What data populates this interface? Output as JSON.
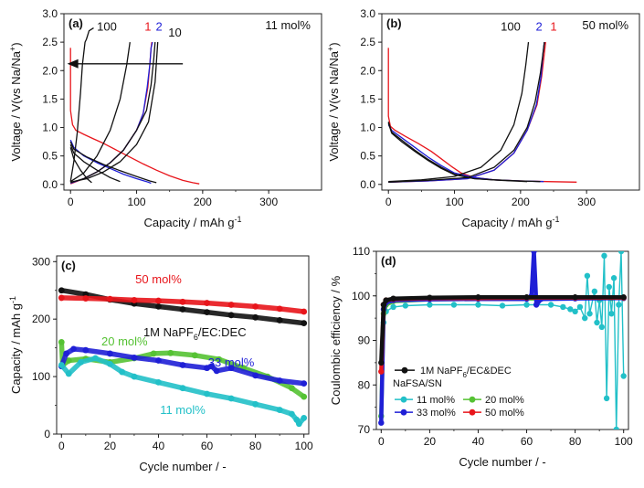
{
  "colors": {
    "black": "#111111",
    "red": "#e8151b",
    "blue": "#1f1fd6",
    "green": "#55c233",
    "cyan": "#22c0c8",
    "gray": "#888888"
  },
  "chart_data": [
    {
      "id": "a",
      "type": "line",
      "panel_label": "(a)",
      "annotation": "11 mol%",
      "xlabel": "Capacity / mAh g",
      "xlabel_sup": "-1",
      "ylabel": "Voltage / V(vs Na/Na",
      "ylabel_sup": "+",
      "ylabel_end": ")",
      "xlim": [
        -10,
        380
      ],
      "ylim": [
        -0.1,
        3.0
      ],
      "xticks": [
        0,
        100,
        200,
        300
      ],
      "yticks": [
        0.0,
        0.5,
        1.0,
        1.5,
        2.0,
        2.5,
        3.0
      ],
      "cycle_labels": [
        {
          "text": "100",
          "color": "black",
          "x": 55,
          "y": 2.7
        },
        {
          "text": "1",
          "color": "red",
          "x": 117,
          "y": 2.7
        },
        {
          "text": "2",
          "color": "blue",
          "x": 134,
          "y": 2.7
        },
        {
          "text": "10",
          "color": "black",
          "x": 158,
          "y": 2.6
        }
      ],
      "arrow": {
        "from": [
          170,
          2.12
        ],
        "to": [
          -5,
          2.12
        ]
      },
      "series": [
        {
          "name": "1",
          "color": "red",
          "x": [
            0,
            0,
            3,
            8,
            20,
            35,
            50,
            70,
            90,
            110,
            130,
            150,
            170,
            185,
            195
          ],
          "y": [
            2.4,
            1.3,
            1.05,
            0.95,
            0.88,
            0.8,
            0.72,
            0.6,
            0.48,
            0.36,
            0.25,
            0.15,
            0.07,
            0.03,
            0.01
          ]
        },
        {
          "name": "1",
          "color": "red",
          "x": [
            0,
            20,
            40,
            60,
            80,
            100,
            110,
            117,
            120,
            122,
            123
          ],
          "y": [
            0.01,
            0.1,
            0.22,
            0.38,
            0.6,
            0.95,
            1.25,
            1.7,
            2.1,
            2.4,
            2.5
          ]
        },
        {
          "name": "2",
          "color": "blue",
          "x": [
            0,
            20,
            40,
            60,
            80,
            100,
            110,
            116,
            120,
            122,
            124
          ],
          "y": [
            0.02,
            0.1,
            0.22,
            0.38,
            0.6,
            0.95,
            1.25,
            1.7,
            2.1,
            2.4,
            2.5
          ]
        },
        {
          "name": "2",
          "color": "blue",
          "x": [
            0,
            5,
            20,
            40,
            60,
            80,
            100,
            115,
            122
          ],
          "y": [
            0.78,
            0.65,
            0.5,
            0.38,
            0.28,
            0.18,
            0.1,
            0.05,
            0.02
          ]
        },
        {
          "name": "10",
          "color": "black",
          "x": [
            0,
            5,
            25,
            50,
            75,
            100,
            120,
            130
          ],
          "y": [
            0.75,
            0.62,
            0.48,
            0.35,
            0.24,
            0.14,
            0.06,
            0.03
          ]
        },
        {
          "name": "10",
          "color": "black",
          "x": [
            0,
            20,
            40,
            60,
            80,
            100,
            115,
            122,
            126,
            128
          ],
          "y": [
            0.03,
            0.1,
            0.22,
            0.38,
            0.6,
            0.95,
            1.3,
            1.75,
            2.2,
            2.5
          ]
        },
        {
          "name": "10",
          "color": "black",
          "x": [
            0,
            25,
            50,
            75,
            100,
            118,
            128,
            132
          ],
          "y": [
            0.04,
            0.1,
            0.22,
            0.4,
            0.7,
            1.1,
            1.8,
            2.5
          ]
        },
        {
          "name": "50",
          "color": "black",
          "x": [
            0,
            5,
            20,
            40,
            60,
            75
          ],
          "y": [
            0.7,
            0.55,
            0.4,
            0.25,
            0.12,
            0.05
          ]
        },
        {
          "name": "50",
          "color": "black",
          "x": [
            0,
            20,
            40,
            60,
            75,
            85,
            90
          ],
          "y": [
            0.05,
            0.2,
            0.5,
            0.95,
            1.5,
            2.1,
            2.5
          ]
        },
        {
          "name": "100",
          "color": "black",
          "x": [
            0,
            5,
            15,
            25,
            32
          ],
          "y": [
            0.65,
            0.45,
            0.25,
            0.1,
            0.03
          ]
        },
        {
          "name": "100",
          "color": "black",
          "x": [
            0,
            5,
            10,
            15,
            18,
            22,
            24,
            28,
            35
          ],
          "y": [
            0.05,
            0.4,
            0.9,
            1.6,
            2.1,
            2.5,
            2.55,
            2.7,
            2.75
          ]
        }
      ]
    },
    {
      "id": "b",
      "type": "line",
      "panel_label": "(b)",
      "annotation": "50 mol%",
      "xlabel": "Capacity / mAh g",
      "xlabel_sup": "-1",
      "ylabel": "Voltage / V(vs Na/Na",
      "ylabel_sup": "+",
      "ylabel_end": ")",
      "xlim": [
        -10,
        380
      ],
      "ylim": [
        -0.1,
        3.0
      ],
      "xticks": [
        0,
        100,
        200,
        300
      ],
      "yticks": [
        0.0,
        0.5,
        1.0,
        1.5,
        2.0,
        2.5,
        3.0
      ],
      "cycle_labels": [
        {
          "text": "100",
          "color": "black",
          "x": 185,
          "y": 2.7
        },
        {
          "text": "2",
          "color": "blue",
          "x": 228,
          "y": 2.7
        },
        {
          "text": "1",
          "color": "red",
          "x": 250,
          "y": 2.7
        }
      ],
      "series": [
        {
          "name": "1",
          "color": "red",
          "x": [
            0,
            0,
            3,
            10,
            25,
            45,
            65,
            80,
            95,
            110,
            130,
            160,
            200,
            240,
            285
          ],
          "y": [
            2.4,
            1.2,
            1.02,
            0.95,
            0.85,
            0.72,
            0.58,
            0.45,
            0.32,
            0.2,
            0.12,
            0.08,
            0.06,
            0.05,
            0.04
          ]
        },
        {
          "name": "1",
          "color": "red",
          "x": [
            0,
            60,
            120,
            160,
            190,
            210,
            225,
            232,
            236,
            238
          ],
          "y": [
            0.04,
            0.06,
            0.1,
            0.25,
            0.55,
            0.95,
            1.4,
            1.9,
            2.3,
            2.5
          ]
        },
        {
          "name": "2",
          "color": "blue",
          "x": [
            0,
            60,
            120,
            160,
            190,
            210,
            224,
            231,
            234,
            236
          ],
          "y": [
            0.04,
            0.06,
            0.1,
            0.25,
            0.55,
            0.95,
            1.4,
            1.9,
            2.3,
            2.5
          ]
        },
        {
          "name": "2",
          "color": "blue",
          "x": [
            0,
            5,
            20,
            40,
            60,
            80,
            100,
            130,
            160,
            200,
            235
          ],
          "y": [
            1.05,
            0.95,
            0.82,
            0.65,
            0.48,
            0.33,
            0.2,
            0.12,
            0.08,
            0.06,
            0.05
          ]
        },
        {
          "name": "10",
          "color": "black",
          "x": [
            0,
            5,
            20,
            40,
            60,
            80,
            100,
            130,
            160,
            200,
            230
          ],
          "y": [
            1.1,
            0.92,
            0.78,
            0.6,
            0.44,
            0.3,
            0.18,
            0.1,
            0.08,
            0.06,
            0.05
          ]
        },
        {
          "name": "10",
          "color": "black",
          "x": [
            0,
            60,
            120,
            160,
            190,
            210,
            222,
            230,
            234,
            236
          ],
          "y": [
            0.04,
            0.07,
            0.12,
            0.3,
            0.6,
            1.0,
            1.45,
            1.95,
            2.3,
            2.5
          ]
        },
        {
          "name": "100",
          "color": "black",
          "x": [
            0,
            5,
            20,
            40,
            60,
            80,
            100,
            130,
            170,
            210
          ],
          "y": [
            1.08,
            0.9,
            0.75,
            0.58,
            0.42,
            0.28,
            0.17,
            0.1,
            0.07,
            0.05
          ]
        },
        {
          "name": "100",
          "color": "black",
          "x": [
            0,
            50,
            100,
            140,
            170,
            190,
            202,
            208,
            212
          ],
          "y": [
            0.05,
            0.08,
            0.14,
            0.3,
            0.6,
            1.05,
            1.6,
            2.1,
            2.5
          ]
        }
      ]
    },
    {
      "id": "c",
      "type": "scatter",
      "panel_label": "(c)",
      "xlabel": "Cycle number / -",
      "ylabel": "Capacity / mAh g",
      "ylabel_sup": "-1",
      "xlim": [
        -2,
        102
      ],
      "ylim": [
        0,
        310
      ],
      "xticks": [
        0,
        20,
        40,
        60,
        80,
        100
      ],
      "yticks": [
        0,
        100,
        200,
        300
      ],
      "labels": [
        {
          "text": "50 mol%",
          "color": "red",
          "x": 40,
          "y": 262
        },
        {
          "text": "1M NaPF",
          "sub": "6",
          "rest": "/EC:DEC",
          "color": "black",
          "x": 55,
          "y": 170
        },
        {
          "text": "20 mol%",
          "color": "green",
          "x": 26,
          "y": 154
        },
        {
          "text": "33 mol%",
          "color": "blue",
          "x": 70,
          "y": 118
        },
        {
          "text": "11 mol%",
          "color": "cyan",
          "x": 50,
          "y": 35
        }
      ],
      "series": [
        {
          "name": "1M NaPF6/EC:DEC",
          "color": "black",
          "x": [
            0,
            10,
            20,
            30,
            40,
            50,
            60,
            70,
            80,
            90,
            100
          ],
          "y": [
            250,
            243,
            234,
            227,
            222,
            217,
            212,
            207,
            203,
            198,
            193
          ]
        },
        {
          "name": "50 mol%",
          "color": "red",
          "x": [
            0,
            10,
            20,
            30,
            40,
            50,
            60,
            70,
            80,
            90,
            100
          ],
          "y": [
            237,
            236,
            235,
            233,
            232,
            230,
            228,
            225,
            222,
            218,
            213
          ]
        },
        {
          "name": "20 mol%",
          "color": "green",
          "x": [
            0,
            0.5,
            3,
            10,
            20,
            30,
            38,
            45,
            55,
            65,
            75,
            85,
            95,
            100
          ],
          "y": [
            160,
            120,
            128,
            131,
            125,
            132,
            140,
            141,
            137,
            130,
            115,
            100,
            80,
            65
          ]
        },
        {
          "name": "33 mol%",
          "color": "blue",
          "x": [
            0,
            2,
            5,
            10,
            20,
            30,
            40,
            50,
            60,
            62,
            64,
            70,
            80,
            90,
            100
          ],
          "y": [
            118,
            140,
            148,
            146,
            140,
            133,
            128,
            120,
            115,
            118,
            110,
            115,
            102,
            93,
            88
          ]
        },
        {
          "name": "11 mol%",
          "color": "cyan",
          "x": [
            0,
            3,
            8,
            14,
            20,
            25,
            30,
            40,
            50,
            60,
            70,
            80,
            90,
            95,
            97,
            98,
            100
          ],
          "y": [
            120,
            105,
            125,
            132,
            122,
            108,
            100,
            90,
            80,
            70,
            62,
            52,
            42,
            35,
            25,
            18,
            28
          ]
        }
      ]
    },
    {
      "id": "d",
      "type": "scatter",
      "panel_label": "(d)",
      "xlabel": "Cycle number / -",
      "ylabel": "Coulombic efficiency / %",
      "xlim": [
        -2,
        102
      ],
      "ylim": [
        70,
        110
      ],
      "xticks": [
        0,
        20,
        40,
        60,
        80,
        100
      ],
      "yticks": [
        70,
        80,
        90,
        100,
        110
      ],
      "legend": {
        "entry_main": {
          "label": "1M NaPF",
          "sub": "6",
          "rest": "/EC&DEC",
          "color": "black"
        },
        "group_title": "NaFSA/SN",
        "entries": [
          {
            "label": "11 mol%",
            "color": "cyan"
          },
          {
            "label": "20 mol%",
            "color": "green"
          },
          {
            "label": "33 mol%",
            "color": "blue"
          },
          {
            "label": "50 mol%",
            "color": "red"
          }
        ],
        "placement": "bottom-center"
      },
      "series": [
        {
          "name": "11 mol%",
          "color": "cyan",
          "x": [
            0,
            1,
            2,
            5,
            10,
            20,
            30,
            40,
            50,
            60,
            70,
            75,
            78,
            80,
            82,
            84,
            85,
            86,
            88,
            89,
            90,
            91,
            92,
            93,
            94,
            95,
            96,
            97,
            98,
            99,
            100
          ],
          "y": [
            73,
            94,
            96.5,
            97.5,
            97.8,
            98,
            98,
            98,
            97.8,
            98,
            98,
            97.5,
            97,
            96.5,
            97.5,
            95,
            104.5,
            96,
            101,
            94,
            99,
            93,
            109,
            77,
            102,
            96,
            104,
            70,
            98,
            110,
            82
          ]
        },
        {
          "name": "20 mol%",
          "color": "green",
          "x": [
            0,
            1,
            2,
            5,
            20,
            40,
            60,
            80,
            90,
            95,
            100
          ],
          "y": [
            73,
            96,
            98,
            98.8,
            99.2,
            99.3,
            99.4,
            99.5,
            99.5,
            99.5,
            99.5
          ]
        },
        {
          "name": "33 mol%",
          "color": "blue",
          "x": [
            0,
            1,
            2,
            5,
            20,
            40,
            60,
            62,
            63,
            64,
            66,
            80,
            100
          ],
          "y": [
            71.5,
            97,
            98.5,
            99,
            99.2,
            99.3,
            99.3,
            100,
            110,
            98,
            99.3,
            99.4,
            99.5
          ]
        },
        {
          "name": "50 mol%",
          "color": "red",
          "x": [
            0,
            1,
            2,
            5,
            20,
            40,
            60,
            80,
            100
          ],
          "y": [
            83,
            98,
            99,
            99.3,
            99.5,
            99.5,
            99.6,
            99.6,
            99.6
          ]
        },
        {
          "name": "1M NaPF6/EC&DEC",
          "color": "black",
          "x": [
            0,
            1,
            2,
            5,
            20,
            40,
            60,
            80,
            100
          ],
          "y": [
            85,
            98,
            99,
            99.4,
            99.6,
            99.7,
            99.7,
            99.7,
            99.7
          ]
        }
      ]
    }
  ]
}
